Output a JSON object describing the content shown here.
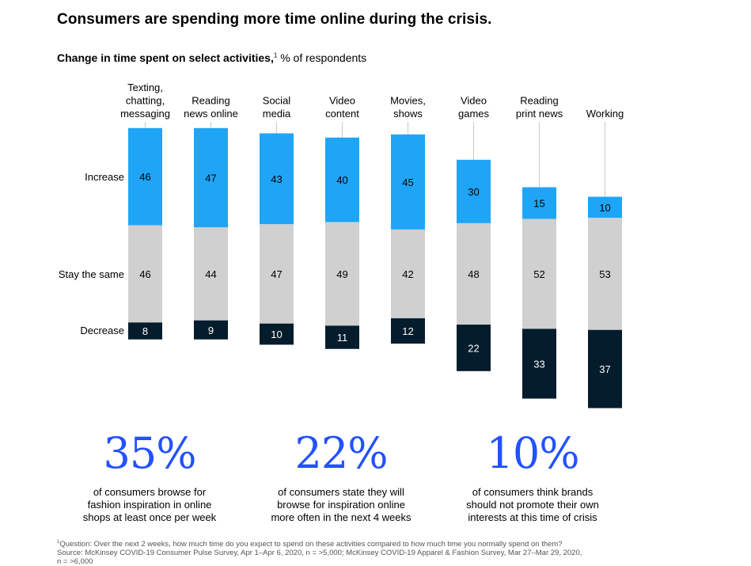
{
  "title": "Consumers are spending more time online during the crisis.",
  "subtitle": {
    "bold": "Change in time spent on select activities,",
    "note_marker": "1",
    "rest": " % of respondents"
  },
  "colors": {
    "increase": "#1fa5f5",
    "stay": "#d0d0d0",
    "decrease": "#051c2c",
    "stat_accent": "#2251ff"
  },
  "chart_data": {
    "type": "bar",
    "stacked": true,
    "baseline": "stay the same segment centered",
    "row_labels": [
      "Increase",
      "Stay the same",
      "Decrease"
    ],
    "categories": [
      [
        "Texting,",
        "chatting,",
        "messaging"
      ],
      [
        "Reading",
        "news online"
      ],
      [
        "Social",
        "media"
      ],
      [
        "Video",
        "content"
      ],
      [
        "Movies,",
        "shows"
      ],
      [
        "Video",
        "games"
      ],
      [
        "Reading",
        "print news"
      ],
      [
        "Working"
      ]
    ],
    "series": [
      {
        "name": "Increase",
        "values": [
          46,
          47,
          43,
          40,
          45,
          30,
          15,
          10
        ]
      },
      {
        "name": "Stay the same",
        "values": [
          46,
          44,
          47,
          49,
          42,
          48,
          52,
          53
        ]
      },
      {
        "name": "Decrease",
        "values": [
          8,
          9,
          10,
          11,
          12,
          22,
          33,
          37
        ]
      }
    ]
  },
  "stats": [
    {
      "value": "35%",
      "lines": [
        "of consumers browse for",
        "fashion inspiration in online",
        "shops at least once per week"
      ]
    },
    {
      "value": "22%",
      "lines": [
        "of consumers state they will",
        "browse for inspiration online",
        "more often in the next 4 weeks"
      ]
    },
    {
      "value": "10%",
      "lines": [
        "of consumers think brands",
        "should not promote their own",
        "interests at this time of crisis"
      ]
    }
  ],
  "footnote": {
    "marker": "1",
    "lines": [
      "Question: Over the next 2 weeks, how much time do you expect to spend on these activities compared to how much time you normally spend on them?",
      "Source: McKinsey COVID-19 Consumer Pulse Survey, Apr 1–Apr 6, 2020, n = >5,000; McKinsey COVID-19 Apparel & Fashion Survey, Mar 27–Mar 29, 2020,",
      "n = >6,000"
    ]
  }
}
